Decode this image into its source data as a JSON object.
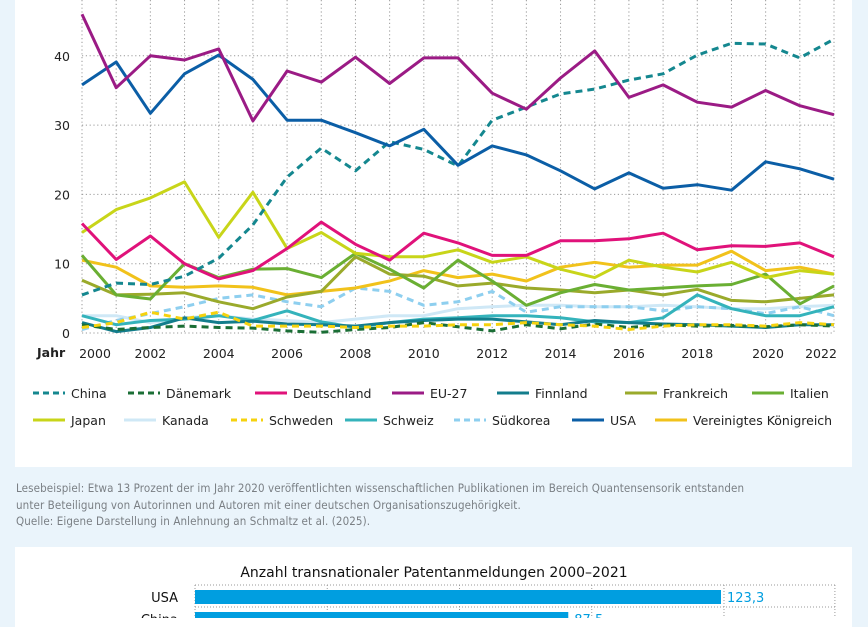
{
  "chart_data": [
    {
      "type": "line",
      "title": "",
      "xlabel": "Jahr",
      "ylabel": "",
      "x": [
        2000,
        2001,
        2002,
        2003,
        2004,
        2005,
        2006,
        2007,
        2008,
        2009,
        2010,
        2011,
        2012,
        2013,
        2014,
        2015,
        2016,
        2017,
        2018,
        2019,
        2020,
        2021,
        2022
      ],
      "x_tick_labels": [
        "2000",
        "2002",
        "2004",
        "2006",
        "2008",
        "2010",
        "2012",
        "2014",
        "2016",
        "2018",
        "2020",
        "2022"
      ],
      "y_tick_labels": [
        "0",
        "10",
        "20",
        "30",
        "40"
      ],
      "ylim": [
        0,
        46
      ],
      "grid": true,
      "legend_position": "bottom",
      "series": [
        {
          "name": "China",
          "color": "#14878f",
          "dash": true,
          "values": [
            5.5,
            7.2,
            7.0,
            8.2,
            10.8,
            15.6,
            22.5,
            26.7,
            23.4,
            27.6,
            26.5,
            24.1,
            30.7,
            32.6,
            34.5,
            35.2,
            36.5,
            37.4,
            40.1,
            41.8,
            41.7,
            39.7,
            42.4
          ]
        },
        {
          "name": "Dänemark",
          "color": "#1a6e35",
          "dash": true,
          "values": [
            1.2,
            0.5,
            0.8,
            1.0,
            0.8,
            0.7,
            0.3,
            0.1,
            0.5,
            0.8,
            1.5,
            0.9,
            0.3,
            1.2,
            0.6,
            1.3,
            0.8,
            1.2,
            1.0,
            1.1,
            0.9,
            1.2,
            1.0
          ]
        },
        {
          "name": "Deutschland",
          "color": "#e0127a",
          "dash": false,
          "values": [
            15.8,
            10.6,
            14.0,
            10.0,
            7.8,
            9.0,
            12.2,
            16.0,
            12.8,
            10.5,
            14.4,
            13.0,
            11.2,
            11.2,
            13.3,
            13.3,
            13.6,
            14.4,
            12.0,
            12.6,
            12.5,
            13.0,
            11.0
          ]
        },
        {
          "name": "EU-27",
          "color": "#9b1b85",
          "dash": false,
          "values": [
            46.0,
            35.4,
            40.0,
            39.4,
            41.0,
            30.6,
            37.8,
            36.2,
            39.8,
            36.0,
            39.7,
            39.7,
            34.6,
            32.3,
            36.8,
            40.7,
            34.0,
            35.8,
            33.3,
            32.6,
            35.0,
            32.8,
            31.5
          ]
        },
        {
          "name": "Finnland",
          "color": "#137d8c",
          "dash": false,
          "values": [
            1.5,
            0.2,
            0.8,
            2.2,
            1.5,
            1.7,
            1.3,
            1.2,
            1.0,
            1.5,
            1.8,
            2.0,
            2.0,
            1.6,
            1.2,
            1.8,
            1.5,
            1.3,
            1.2,
            1.0,
            0.8,
            1.2,
            1.2
          ]
        },
        {
          "name": "Frankreich",
          "color": "#9aaa2b",
          "dash": false,
          "values": [
            7.6,
            5.5,
            5.6,
            5.8,
            4.5,
            3.5,
            5.2,
            6.0,
            11.0,
            8.5,
            8.2,
            6.8,
            7.2,
            6.5,
            6.2,
            5.8,
            6.2,
            5.5,
            6.3,
            4.7,
            4.5,
            5.0,
            5.5
          ]
        },
        {
          "name": "Italien",
          "color": "#6aaf33",
          "dash": false,
          "values": [
            11.2,
            5.5,
            4.9,
            10.0,
            8.0,
            9.2,
            9.3,
            8.0,
            11.5,
            9.2,
            6.5,
            10.5,
            7.5,
            4.0,
            5.8,
            7.0,
            6.2,
            6.5,
            6.8,
            7.0,
            8.5,
            4.2,
            6.8
          ]
        },
        {
          "name": "Japan",
          "color": "#c8d519",
          "dash": false,
          "values": [
            14.5,
            17.8,
            19.5,
            21.8,
            13.8,
            20.3,
            12.2,
            14.5,
            11.5,
            11.0,
            11.0,
            12.0,
            10.2,
            11.0,
            9.2,
            8.0,
            10.5,
            9.5,
            8.8,
            10.2,
            8.0,
            9.0,
            8.5
          ]
        },
        {
          "name": "Kanada",
          "color": "#cfe8f6",
          "dash": false,
          "values": [
            2.5,
            2.5,
            1.5,
            2.2,
            2.5,
            2.0,
            1.8,
            1.5,
            2.0,
            2.5,
            2.5,
            3.5,
            3.8,
            4.0,
            4.0,
            3.8,
            3.8,
            4.0,
            3.8,
            3.5,
            3.5,
            3.8,
            4.0
          ]
        },
        {
          "name": "Schweden",
          "color": "#f5d20e",
          "dash": true,
          "values": [
            0.8,
            1.5,
            3.0,
            2.0,
            3.0,
            1.0,
            1.0,
            1.0,
            0.8,
            1.0,
            1.0,
            1.2,
            1.2,
            1.5,
            1.2,
            1.0,
            0.5,
            1.0,
            1.2,
            1.2,
            1.0,
            1.5,
            1.2
          ]
        },
        {
          "name": "Schweiz",
          "color": "#34b3bb",
          "dash": false,
          "values": [
            2.5,
            1.2,
            1.8,
            2.0,
            2.5,
            1.8,
            3.2,
            1.6,
            0.8,
            1.5,
            2.0,
            2.2,
            2.5,
            2.5,
            2.2,
            1.6,
            1.5,
            2.2,
            5.5,
            3.5,
            2.5,
            2.5,
            3.8
          ]
        },
        {
          "name": "Südkorea",
          "color": "#8ecfef",
          "dash": true,
          "values": [
            0.5,
            1.8,
            2.8,
            3.8,
            5.0,
            5.5,
            4.5,
            3.8,
            6.5,
            6.0,
            4.0,
            4.5,
            6.0,
            3.0,
            3.8,
            3.8,
            3.8,
            3.2,
            3.8,
            3.5,
            2.8,
            3.8,
            2.5
          ]
        },
        {
          "name": "USA",
          "color": "#0b5ea6",
          "dash": false,
          "values": [
            35.8,
            39.1,
            31.7,
            37.4,
            40.1,
            36.6,
            30.7,
            30.7,
            28.9,
            27.0,
            29.4,
            24.2,
            27.0,
            25.7,
            23.4,
            20.8,
            23.1,
            20.9,
            21.4,
            20.6,
            24.7,
            23.7,
            22.2
          ]
        },
        {
          "name": "Vereinigtes Königreich",
          "color": "#f1c21b",
          "dash": false,
          "values": [
            10.5,
            9.5,
            6.8,
            6.6,
            6.8,
            6.6,
            5.5,
            6.0,
            6.5,
            7.5,
            9.0,
            8.0,
            8.5,
            7.5,
            9.5,
            10.2,
            9.5,
            9.8,
            9.8,
            11.8,
            9.0,
            9.5,
            8.5
          ]
        }
      ]
    },
    {
      "type": "bar",
      "orientation": "horizontal",
      "title": "Anzahl transnationaler Patentanmeldungen 2000–2021",
      "categories": [
        "USA",
        "China"
      ],
      "values": [
        123.3,
        87.5
      ],
      "value_labels": [
        "123,3",
        "87,5"
      ],
      "color": "#009ee0"
    }
  ],
  "notes": {
    "line1": "Lesebeispiel: Etwa 13 Prozent der im Jahr 2020 veröffentlichten wissenschaftlichen Publikationen im Bereich Quantensensorik entstanden",
    "line2": "unter Beteiligung von Autorinnen und Autoren mit einer deutschen Organisationszugehörigkeit.",
    "line3": "Quelle: Eigene Darstellung in Anlehnung an Schmaltz et al. (2025)."
  }
}
